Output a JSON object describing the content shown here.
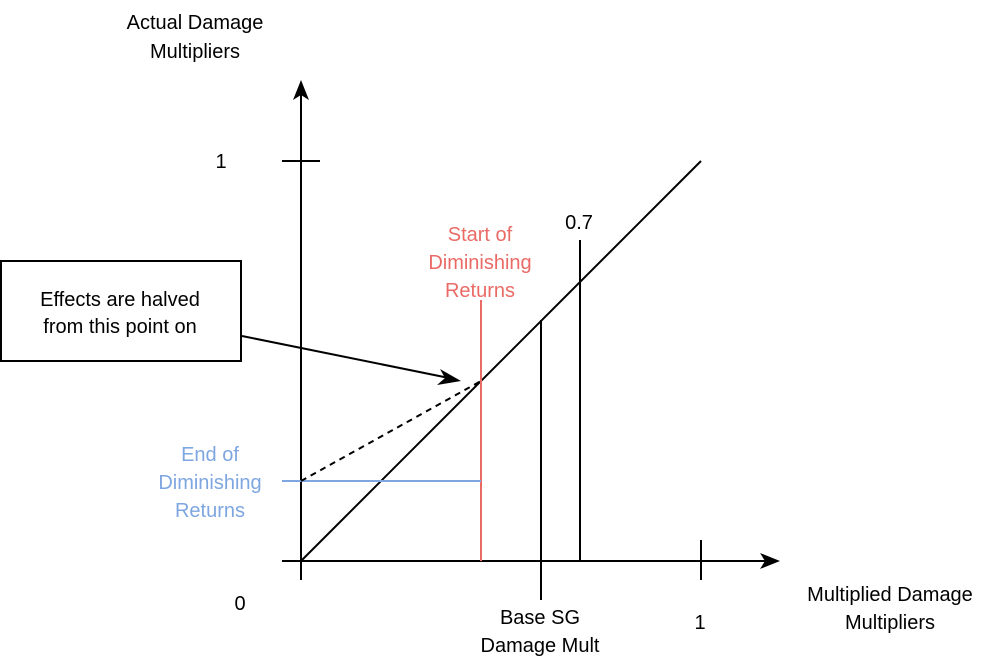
{
  "y_axis": {
    "label_line1": "Actual Damage",
    "label_line2": "Multipliers"
  },
  "x_axis": {
    "label_line1": "Multiplied Damage",
    "label_line2": "Multipliers"
  },
  "ticks": {
    "y_one": "1",
    "origin": "0",
    "x_one": "1"
  },
  "markers": {
    "seven_tenths": "0.7"
  },
  "start_label": {
    "line1": "Start of",
    "line2": "Diminishing",
    "line3": "Returns"
  },
  "end_label": {
    "line1": "End of",
    "line2": "Diminishing",
    "line3": "Returns"
  },
  "base_label": {
    "line1": "Base SG",
    "line2": "Damage Mult"
  },
  "callout": {
    "line1": "Effects are halved",
    "line2": "from this point on"
  },
  "colors": {
    "start": "#ea6b66",
    "end": "#7ea6e0",
    "ink": "#000000"
  }
}
